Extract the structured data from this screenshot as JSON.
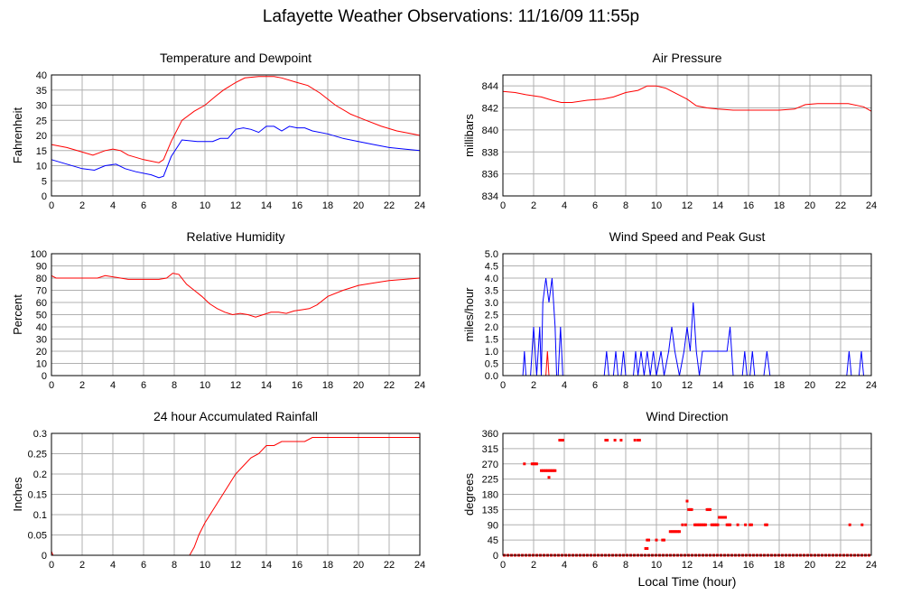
{
  "title": "Lafayette Weather Observations: 11/16/09 11:55p",
  "colors": {
    "red": "#ff0000",
    "blue": "#0000ff",
    "grid": "#b0b0b0",
    "frame": "#000000"
  },
  "chart_data": [
    {
      "id": "temp",
      "type": "line",
      "title": "Temperature and Dewpoint",
      "xlabel": "",
      "ylabel": "Fahrenheit",
      "xlim": [
        0,
        24
      ],
      "ylim": [
        0,
        40
      ],
      "xticks": [
        0,
        2,
        4,
        6,
        8,
        10,
        12,
        14,
        16,
        18,
        20,
        22,
        24
      ],
      "yticks": [
        0,
        5,
        10,
        15,
        20,
        25,
        30,
        35,
        40
      ],
      "grid": true,
      "series": [
        {
          "color": "red",
          "style": "line",
          "x": [
            0,
            1,
            2,
            2.7,
            3.5,
            4,
            4.5,
            5,
            6,
            7,
            7.3,
            7.8,
            8.5,
            9.3,
            10,
            10.7,
            11.2,
            12,
            12.6,
            13.5,
            14.5,
            15,
            16,
            16.7,
            17.5,
            18.5,
            19.5,
            20.5,
            21.5,
            22.5,
            23.5,
            24
          ],
          "y": [
            17,
            16,
            14.5,
            13.5,
            15,
            15.5,
            15,
            13.5,
            12,
            11,
            12,
            18,
            25,
            28,
            30,
            33,
            35,
            37.5,
            39,
            39.5,
            39.5,
            39,
            37.5,
            36.5,
            34,
            30,
            27,
            25,
            23,
            21.5,
            20.5,
            20
          ]
        },
        {
          "color": "blue",
          "style": "line",
          "x": [
            0,
            1,
            2,
            2.8,
            3.5,
            4.2,
            4.8,
            5.5,
            6.5,
            7,
            7.3,
            7.8,
            8.5,
            9.5,
            10.5,
            11,
            11.5,
            12,
            12.5,
            13,
            13.5,
            14,
            14.5,
            15,
            15.5,
            16,
            16.5,
            17,
            18,
            19,
            20,
            21,
            22,
            23,
            24
          ],
          "y": [
            12,
            10.5,
            9,
            8.5,
            10,
            10.5,
            9,
            8,
            7,
            6,
            6.5,
            13,
            18.5,
            18,
            18,
            19,
            19,
            22,
            22.5,
            22,
            21,
            23,
            23,
            21.5,
            23,
            22.5,
            22.5,
            21.5,
            20.5,
            19,
            18,
            17,
            16,
            15.5,
            15
          ]
        }
      ]
    },
    {
      "id": "pressure",
      "type": "line",
      "title": "Air Pressure",
      "xlabel": "",
      "ylabel": "millibars",
      "xlim": [
        0,
        24
      ],
      "ylim": [
        834,
        845
      ],
      "xticks": [
        0,
        2,
        4,
        6,
        8,
        10,
        12,
        14,
        16,
        18,
        20,
        22,
        24
      ],
      "yticks": [
        834,
        836,
        838,
        840,
        842,
        844
      ],
      "grid": true,
      "series": [
        {
          "color": "red",
          "style": "line",
          "x": [
            0,
            0.8,
            1.5,
            2.5,
            3.2,
            3.8,
            4.5,
            5.5,
            6.5,
            7.2,
            8,
            8.8,
            9.4,
            10,
            10.6,
            11.3,
            12,
            12.6,
            13.3,
            14,
            15,
            16,
            17,
            18,
            19,
            19.7,
            20.5,
            21.5,
            22.5,
            23.5,
            24
          ],
          "y": [
            843.5,
            843.4,
            843.2,
            843.0,
            842.7,
            842.5,
            842.5,
            842.7,
            842.8,
            843.0,
            843.4,
            843.6,
            844.0,
            844.0,
            843.8,
            843.3,
            842.8,
            842.2,
            842.0,
            841.9,
            841.8,
            841.8,
            841.8,
            841.8,
            841.9,
            842.3,
            842.4,
            842.4,
            842.4,
            842.1,
            841.7
          ]
        }
      ]
    },
    {
      "id": "humidity",
      "type": "line",
      "title": "Relative Humidity",
      "xlabel": "",
      "ylabel": "Percent",
      "xlim": [
        0,
        24
      ],
      "ylim": [
        0,
        100
      ],
      "xticks": [
        0,
        2,
        4,
        6,
        8,
        10,
        12,
        14,
        16,
        18,
        20,
        22,
        24
      ],
      "yticks": [
        0,
        10,
        20,
        30,
        40,
        50,
        60,
        70,
        80,
        90,
        100
      ],
      "grid": true,
      "series": [
        {
          "color": "red",
          "style": "line",
          "x": [
            0,
            0.3,
            1,
            2,
            3,
            3.5,
            4,
            4.5,
            5,
            6,
            7,
            7.5,
            7.9,
            8.3,
            8.8,
            9.3,
            9.8,
            10.3,
            10.8,
            11.3,
            11.8,
            12.3,
            12.8,
            13.3,
            13.8,
            14.3,
            14.8,
            15.3,
            15.8,
            16.3,
            16.8,
            17.3,
            18,
            19,
            20,
            21,
            22,
            23,
            24
          ],
          "y": [
            82,
            80,
            80,
            80,
            80,
            82,
            81,
            80,
            79,
            79,
            79,
            80,
            84,
            83,
            75,
            70,
            65,
            59,
            55,
            52,
            50,
            51,
            50,
            48,
            50,
            52,
            52,
            51,
            53,
            54,
            55,
            58,
            65,
            70,
            74,
            76,
            78,
            79,
            80
          ]
        }
      ]
    },
    {
      "id": "wind",
      "type": "line",
      "title": "Wind Speed and Peak Gust",
      "xlabel": "",
      "ylabel": "miles/hour",
      "xlim": [
        0,
        24
      ],
      "ylim": [
        0,
        5
      ],
      "xticks": [
        0,
        2,
        4,
        6,
        8,
        10,
        12,
        14,
        16,
        18,
        20,
        22,
        24
      ],
      "yticks": [
        0.0,
        0.5,
        1.0,
        1.5,
        2.0,
        2.5,
        3.0,
        3.5,
        4.0,
        4.5,
        5.0
      ],
      "grid": true,
      "series": [
        {
          "color": "blue",
          "style": "line",
          "x": [
            0,
            1.3,
            1.4,
            1.5,
            1.8,
            2.0,
            2.2,
            2.4,
            2.5,
            2.6,
            2.8,
            3.0,
            3.2,
            3.4,
            3.5,
            3.6,
            3.75,
            3.9,
            4.0,
            6.6,
            6.75,
            6.9,
            7.2,
            7.35,
            7.5,
            7.7,
            7.85,
            8.0,
            8.5,
            8.65,
            8.8,
            9.0,
            9.2,
            9.4,
            9.6,
            9.8,
            10.0,
            10.3,
            10.5,
            10.8,
            11.0,
            11.2,
            11.5,
            11.8,
            12.0,
            12.2,
            12.4,
            12.6,
            12.8,
            13.0,
            13.2,
            13.5,
            14.0,
            14.6,
            14.8,
            15.0,
            15.6,
            15.75,
            15.9,
            16.1,
            16.25,
            16.4,
            17.0,
            17.2,
            17.4,
            22.4,
            22.55,
            22.7,
            23.2,
            23.35,
            23.5,
            24
          ],
          "y": [
            0,
            0,
            1,
            0,
            0,
            2,
            0,
            2,
            0,
            3,
            4,
            3,
            4,
            2,
            0,
            0,
            2,
            0,
            0,
            0,
            1,
            0,
            0,
            1,
            0,
            0,
            1,
            0,
            0,
            1,
            0,
            1,
            0,
            1,
            0,
            1,
            0,
            1,
            0,
            1,
            2,
            1,
            0,
            1,
            2,
            1,
            3,
            1,
            0,
            1,
            1,
            1,
            1,
            1,
            2,
            0,
            0,
            1,
            0,
            0,
            1,
            0,
            0,
            1,
            0,
            0,
            1,
            0,
            0,
            1,
            0,
            0
          ]
        },
        {
          "color": "red",
          "style": "line",
          "x": [
            0,
            2.8,
            2.9,
            3.0,
            24
          ],
          "y": [
            0,
            0,
            1,
            0,
            0
          ]
        }
      ]
    },
    {
      "id": "rain",
      "type": "line",
      "title": "24 hour Accumulated Rainfall",
      "xlabel": "",
      "ylabel": "Inches",
      "xlim": [
        0,
        24
      ],
      "ylim": [
        0,
        0.3
      ],
      "xticks": [
        0,
        2,
        4,
        6,
        8,
        10,
        12,
        14,
        16,
        18,
        20,
        22,
        24
      ],
      "yticks": [
        0,
        0.05,
        0.1,
        0.15,
        0.2,
        0.25,
        0.3
      ],
      "grid": true,
      "series": [
        {
          "color": "red",
          "style": "line",
          "x": [
            0,
            0.1,
            9.0,
            9.3,
            9.6,
            10,
            10.5,
            11,
            11.5,
            12,
            12.5,
            13,
            13.5,
            14,
            14.5,
            15,
            15.5,
            16,
            16.5,
            17,
            18,
            24
          ],
          "y": [
            0.01,
            0,
            0,
            0.02,
            0.05,
            0.08,
            0.11,
            0.14,
            0.17,
            0.2,
            0.22,
            0.24,
            0.25,
            0.27,
            0.27,
            0.28,
            0.28,
            0.28,
            0.28,
            0.29,
            0.29,
            0.29
          ]
        }
      ]
    },
    {
      "id": "direction",
      "type": "scatter",
      "title": "Wind Direction",
      "xlabel": "Local Time (hour)",
      "ylabel": "degrees",
      "xlim": [
        0,
        24
      ],
      "ylim": [
        0,
        360
      ],
      "xticks": [
        0,
        2,
        4,
        6,
        8,
        10,
        12,
        14,
        16,
        18,
        20,
        22,
        24
      ],
      "yticks": [
        0,
        45,
        90,
        135,
        180,
        225,
        270,
        315,
        360
      ],
      "grid": true,
      "baseline_zero_range": [
        0,
        24
      ],
      "series": [
        {
          "color": "red",
          "style": "points",
          "x": [
            1.4,
            1.9,
            2.0,
            2.1,
            2.2,
            2.5,
            2.6,
            2.7,
            2.8,
            2.9,
            3.0,
            3.1,
            3.2,
            3.3,
            3.4,
            3.0,
            3.7,
            3.8,
            3.9,
            6.7,
            6.8,
            7.3,
            7.7,
            8.6,
            8.8,
            8.9,
            9.3,
            9.4,
            9.4,
            9.5,
            10.0,
            10.4,
            10.5,
            10.9,
            11.0,
            11.1,
            11.2,
            11.3,
            11.4,
            11.5,
            11.7,
            11.9,
            12.0,
            12.1,
            12.2,
            12.3,
            12.5,
            12.6,
            12.7,
            12.8,
            12.9,
            13.0,
            13.1,
            13.2,
            13.3,
            13.4,
            13.5,
            13.6,
            13.7,
            13.8,
            13.9,
            14.0,
            14.1,
            14.2,
            14.3,
            14.4,
            14.5,
            14.6,
            14.7,
            14.8,
            15.3,
            15.8,
            16.1,
            16.2,
            17.1,
            17.2,
            22.6,
            23.4
          ],
          "y": [
            270,
            270,
            270,
            270,
            270,
            250,
            250,
            250,
            250,
            250,
            250,
            250,
            250,
            250,
            250,
            230,
            340,
            340,
            340,
            340,
            340,
            340,
            340,
            340,
            340,
            340,
            20,
            20,
            45,
            45,
            45,
            45,
            45,
            70,
            70,
            70,
            70,
            70,
            70,
            70,
            90,
            90,
            160,
            135,
            135,
            135,
            90,
            90,
            90,
            90,
            90,
            90,
            90,
            90,
            135,
            135,
            135,
            90,
            90,
            90,
            90,
            90,
            112,
            112,
            112,
            112,
            112,
            90,
            90,
            90,
            90,
            90,
            90,
            90,
            90,
            90,
            90,
            90
          ]
        }
      ]
    }
  ]
}
